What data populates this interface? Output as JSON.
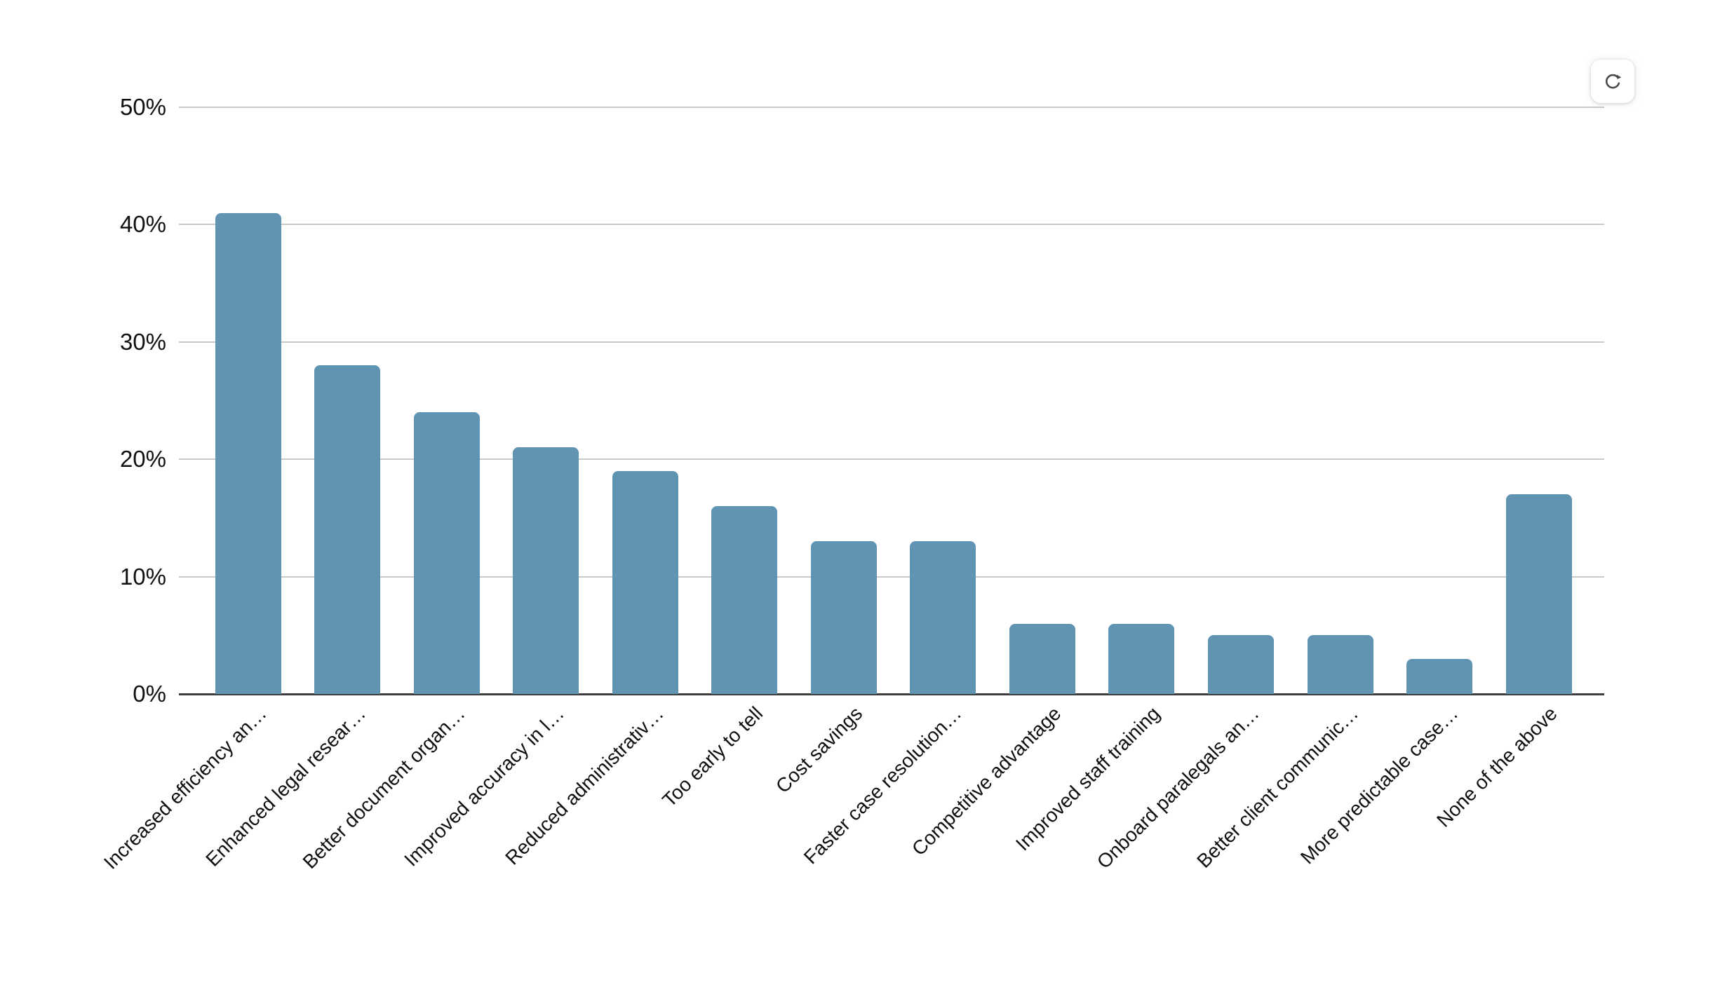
{
  "toolbar": {
    "refresh_icon": "refresh-icon"
  },
  "chart_data": {
    "type": "bar",
    "title": "",
    "xlabel": "",
    "ylabel": "",
    "categories": [
      "Increased efficiency an…",
      "Enhanced legal resear…",
      "Better document organ…",
      "Improved accuracy in l…",
      "Reduced administrativ…",
      "Too early to tell",
      "Cost savings",
      "Faster case resolution…",
      "Competitive advantage",
      "Improved staff training",
      "Onboard paralegals an…",
      "Better client communic…",
      "More predictable case…",
      "None of the above"
    ],
    "values": [
      41,
      28,
      24,
      21,
      19,
      16,
      13,
      13,
      6,
      6,
      5,
      5,
      3,
      17
    ],
    "unit": "%",
    "yticks": [
      "0%",
      "10%",
      "20%",
      "30%",
      "40%",
      "50%"
    ],
    "ylim": [
      0,
      50
    ],
    "grid": true,
    "legend": false,
    "bar_color": "#6094b2",
    "gridline_color": "#c9c9c9",
    "axis_line_color": "#3d3d3d",
    "text_color": "#101010"
  }
}
